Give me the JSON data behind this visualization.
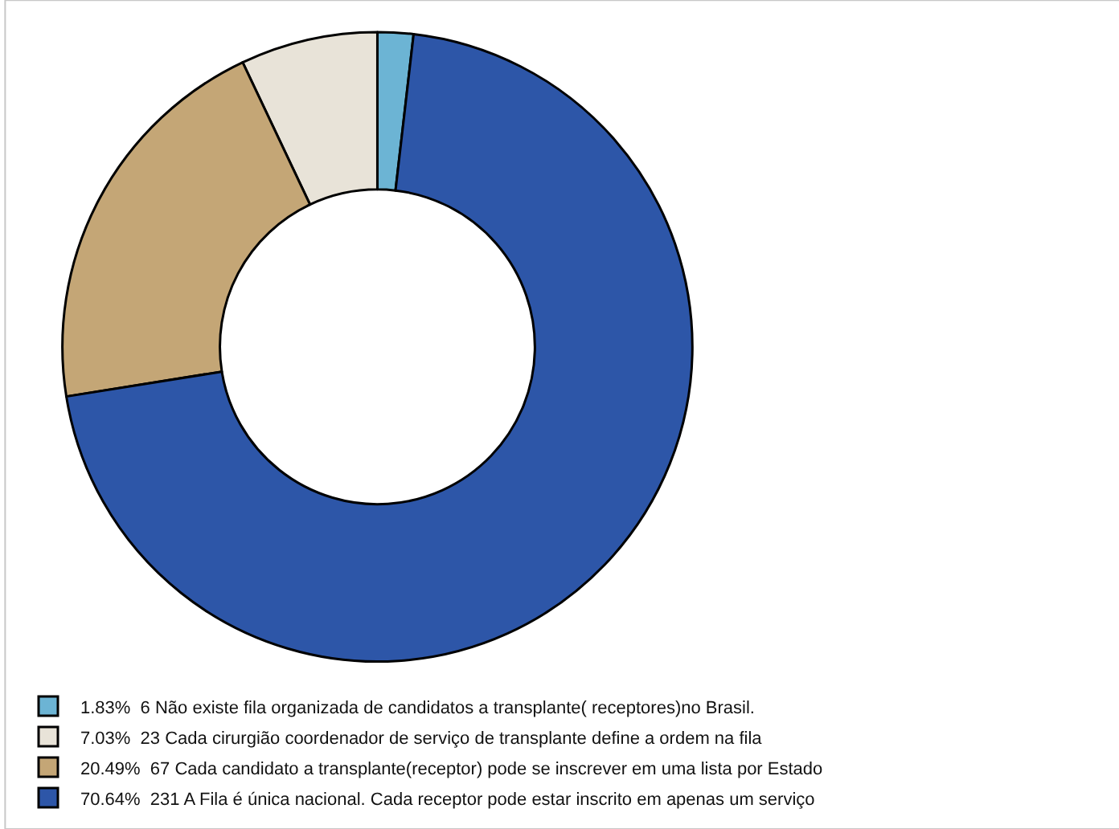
{
  "chart_data": {
    "type": "donut",
    "categories": [
      "1.83%  6 Não existe fila organizada de candidatos a transplante( receptores)no Brasil.",
      "7.03%  23 Cada cirurgião coordenador de serviço de transplante define a ordem na fila",
      "20.49%  67 Cada candidato a transplante(receptor) pode se inscrever em uma lista por Estado",
      "70.64%  231 A Fila é única nacional. Cada receptor pode estar inscrito em apenas um serviço"
    ],
    "values": [
      6,
      23,
      67,
      231
    ],
    "colors": [
      "#6cb4d4",
      "#e8e3d8",
      "#c4a676",
      "#2d56a8"
    ],
    "legend": "bottom"
  }
}
